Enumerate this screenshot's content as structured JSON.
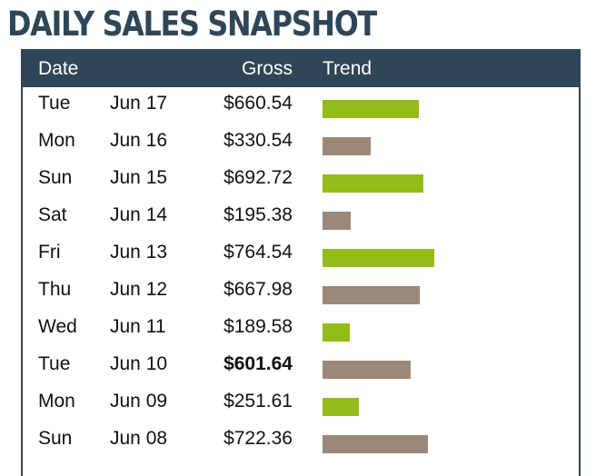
{
  "title": "DAILY SALES SNAPSHOT",
  "columns": {
    "date": "Date",
    "gross": "Gross",
    "trend": "Trend"
  },
  "colors": {
    "header": "#2e4657",
    "up": "#93bb19",
    "down": "#9c8878"
  },
  "rows": [
    {
      "day": "Tue",
      "date": "Jun 17",
      "gross": "$660.54",
      "value": 660.54,
      "trend": "up",
      "bold": false
    },
    {
      "day": "Mon",
      "date": "Jun 16",
      "gross": "$330.54",
      "value": 330.54,
      "trend": "down",
      "bold": false
    },
    {
      "day": "Sun",
      "date": "Jun 15",
      "gross": "$692.72",
      "value": 692.72,
      "trend": "up",
      "bold": false
    },
    {
      "day": "Sat",
      "date": "Jun 14",
      "gross": "$195.38",
      "value": 195.38,
      "trend": "down",
      "bold": false
    },
    {
      "day": "Fri",
      "date": "Jun 13",
      "gross": "$764.54",
      "value": 764.54,
      "trend": "up",
      "bold": false
    },
    {
      "day": "Thu",
      "date": "Jun 12",
      "gross": "$667.98",
      "value": 667.98,
      "trend": "down",
      "bold": false
    },
    {
      "day": "Wed",
      "date": "Jun 11",
      "gross": "$189.58",
      "value": 189.58,
      "trend": "up",
      "bold": false
    },
    {
      "day": "Tue",
      "date": "Jun 10",
      "gross": "$601.64",
      "value": 601.64,
      "trend": "down",
      "bold": true
    },
    {
      "day": "Mon",
      "date": "Jun 09",
      "gross": "$251.61",
      "value": 251.61,
      "trend": "up",
      "bold": false
    },
    {
      "day": "Sun",
      "date": "Jun 08",
      "gross": "$722.36",
      "value": 722.36,
      "trend": "down",
      "bold": false
    }
  ]
}
